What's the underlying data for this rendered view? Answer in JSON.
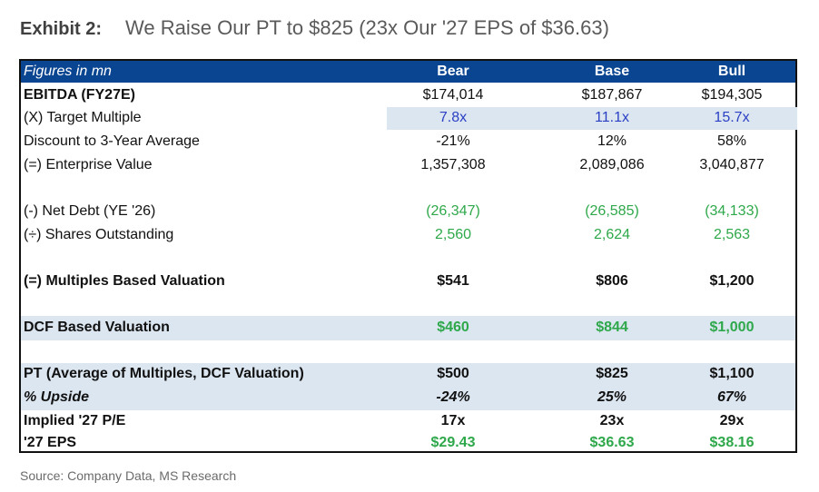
{
  "exhibit": {
    "label": "Exhibit 2:",
    "title": "We Raise Our PT to $825 (23x Our '27 EPS of $36.63)"
  },
  "table": {
    "header": {
      "label": "Figures in mn",
      "columns": [
        "Bear",
        "Base",
        "Bull"
      ]
    },
    "rows": [
      {
        "label": "EBITDA (FY27E)",
        "values": [
          "$174,014",
          "$187,867",
          "$194,305"
        ]
      },
      {
        "label": "(X) Target Multiple",
        "values": [
          "7.8x",
          "11.1x",
          "15.7x"
        ]
      },
      {
        "label": "Discount to 3-Year Average",
        "values": [
          "-21%",
          "12%",
          "58%"
        ]
      },
      {
        "label": "(=) Enterprise Value",
        "values": [
          "1,357,308",
          "2,089,086",
          "3,040,877"
        ]
      },
      {
        "label": "(-) Net Debt (YE '26)",
        "values": [
          "(26,347)",
          "(26,585)",
          "(34,133)"
        ]
      },
      {
        "label": "(÷) Shares Outstanding",
        "values": [
          "2,560",
          "2,624",
          "2,563"
        ]
      },
      {
        "label": "(=) Multiples Based Valuation",
        "values": [
          "$541",
          "$806",
          "$1,200"
        ]
      },
      {
        "label": "DCF Based Valuation",
        "values": [
          "$460",
          "$844",
          "$1,000"
        ]
      },
      {
        "label": "PT (Average of Multiples, DCF Valuation)",
        "values": [
          "$500",
          "$825",
          "$1,100"
        ]
      },
      {
        "label": "% Upside",
        "values": [
          "-24%",
          "25%",
          "67%"
        ]
      },
      {
        "label": "Implied '27 P/E",
        "values": [
          "17x",
          "23x",
          "29x"
        ]
      },
      {
        "label": "'27 EPS",
        "values": [
          "$29.43",
          "$36.63",
          "$38.16"
        ]
      }
    ]
  },
  "source": "Source: Company Data, MS Research",
  "colors": {
    "header_bg": "#0a4591",
    "shade": "#dce6f1",
    "green": "#2ea84a",
    "blue": "#2a3fc4"
  }
}
